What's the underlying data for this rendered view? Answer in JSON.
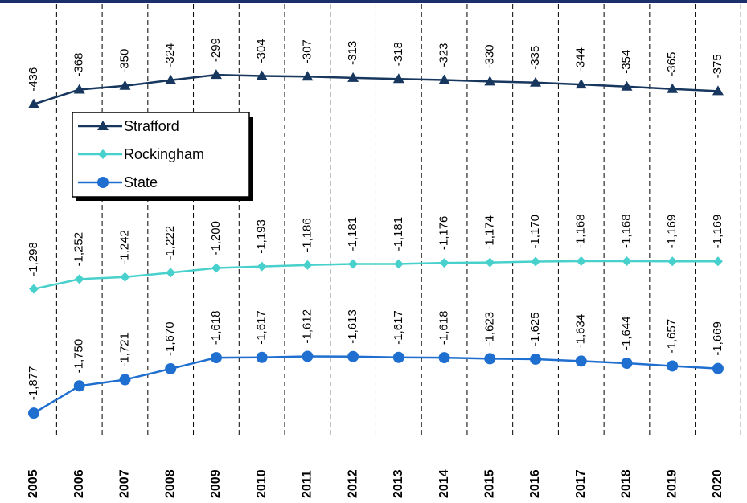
{
  "chart_data": {
    "type": "line",
    "categories": [
      "2005",
      "2006",
      "2007",
      "2008",
      "2009",
      "2010",
      "2011",
      "2012",
      "2013",
      "2014",
      "2015",
      "2016",
      "2017",
      "2018",
      "2019",
      "2020"
    ],
    "ylim": [
      -2000,
      50
    ],
    "legend": "upper left",
    "series": [
      {
        "name": "Strafford",
        "color": "#17375e",
        "marker": "triangle",
        "values": [
          -436,
          -368,
          -350,
          -324,
          -299,
          -304,
          -307,
          -313,
          -318,
          -323,
          -330,
          -335,
          -344,
          -354,
          -365,
          -375
        ]
      },
      {
        "name": "Rockingham",
        "color": "#48d1cc",
        "marker": "diamond",
        "values": [
          -1298,
          -1252,
          -1242,
          -1222,
          -1200,
          -1193,
          -1186,
          -1181,
          -1181,
          -1176,
          -1174,
          -1170,
          -1168,
          -1168,
          -1169,
          -1169
        ],
        "value_labels": [
          "-1,298",
          "-1,252",
          "-1,242",
          "-1,222",
          "-1,200",
          "-1,193",
          "-1,186",
          "-1,181",
          "-1,181",
          "-1,176",
          "-1,174",
          "-1,170",
          "-1,168",
          "-1,168",
          "-1,169",
          "-1,169"
        ]
      },
      {
        "name": "State",
        "color": "#1f6fd0",
        "marker": "circle",
        "values": [
          -1877,
          -1750,
          -1721,
          -1670,
          -1618,
          -1617,
          -1612,
          -1613,
          -1617,
          -1618,
          -1623,
          -1625,
          -1634,
          -1644,
          -1657,
          -1669
        ],
        "value_labels": [
          "-1,877",
          "-1,750",
          "-1,721",
          "-1,670",
          "-1,618",
          "-1,617",
          "-1,612",
          "-1,613",
          "-1,617",
          "-1,618",
          "-1,623",
          "-1,625",
          "-1,634",
          "-1,644",
          "-1,657",
          "-1,669"
        ]
      }
    ]
  }
}
